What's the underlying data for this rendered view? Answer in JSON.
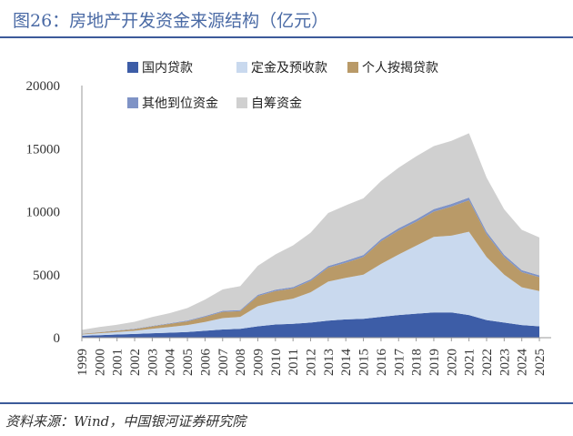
{
  "header": {
    "title": "图26：房地产开发资金来源结构（亿元）"
  },
  "footer": {
    "source": "资料来源：Wind，中国银河证券研究院"
  },
  "colors": {
    "domestic_loans": "#3d5da7",
    "deposits_advances": "#c9d9ee",
    "mortgage": "#b99a68",
    "other_funds": "#7f93c6",
    "self_raised": "#d0d0d0",
    "rule": "#3c5a9a",
    "title": "#4a6aa5"
  },
  "chart_data": {
    "type": "area",
    "title": "",
    "xlabel": "",
    "ylabel": "",
    "ylim": [
      0,
      20000
    ],
    "yticks": [
      0,
      5000,
      10000,
      15000,
      20000
    ],
    "ytick_labels": [
      "0",
      "5000",
      "10000",
      "15000",
      "20000"
    ],
    "xtick_labels": [
      "1999",
      "2000",
      "2001",
      "2002",
      "2003",
      "2004",
      "2005",
      "2006",
      "2007",
      "2008",
      "2009",
      "2010",
      "2011",
      "2012",
      "2013",
      "2014",
      "2015",
      "2016",
      "2017",
      "2018",
      "2019",
      "2020",
      "2021",
      "2022",
      "2023",
      "2024",
      "2025"
    ],
    "frequency": "monthly, Jan 1999 – Aug 2025 (annual points shown as representative year averages)",
    "stacking": "series stacked in listed order",
    "legend": {
      "position": "top",
      "columns": 2
    },
    "x": [
      1999,
      2000,
      2001,
      2002,
      2003,
      2004,
      2005,
      2006,
      2007,
      2008,
      2009,
      2010,
      2011,
      2012,
      2013,
      2014,
      2015,
      2016,
      2017,
      2018,
      2019,
      2020,
      2021,
      2022,
      2023,
      2024,
      2025
    ],
    "series": [
      {
        "name": "国内贷款",
        "key": "domestic_loans",
        "values": [
          150,
          200,
          250,
          300,
          350,
          400,
          450,
          550,
          650,
          700,
          900,
          1050,
          1100,
          1200,
          1350,
          1450,
          1500,
          1650,
          1800,
          1900,
          2000,
          2000,
          1800,
          1400,
          1200,
          1000,
          900
        ]
      },
      {
        "name": "定金及预收款",
        "key": "deposits_advances",
        "values": [
          100,
          150,
          200,
          250,
          350,
          450,
          550,
          700,
          900,
          950,
          1600,
          1800,
          2000,
          2400,
          3100,
          3300,
          3500,
          4200,
          4800,
          5400,
          6000,
          6100,
          6600,
          5000,
          3800,
          3000,
          2800
        ]
      },
      {
        "name": "个人按揭贷款",
        "key": "mortgage",
        "values": [
          50,
          70,
          100,
          130,
          200,
          250,
          300,
          400,
          500,
          450,
          800,
          850,
          800,
          900,
          1100,
          1200,
          1400,
          1800,
          1900,
          1900,
          2000,
          2300,
          2500,
          1800,
          1400,
          1200,
          1100
        ]
      },
      {
        "name": "其他到位资金",
        "key": "other_funds",
        "values": [
          20,
          25,
          30,
          35,
          40,
          50,
          60,
          70,
          80,
          90,
          100,
          110,
          120,
          130,
          140,
          150,
          160,
          170,
          180,
          190,
          200,
          210,
          220,
          200,
          180,
          160,
          150
        ]
      },
      {
        "name": "自筹资金",
        "key": "self_raised",
        "values": [
          300,
          400,
          450,
          550,
          700,
          800,
          1000,
          1300,
          1700,
          1900,
          2300,
          2800,
          3300,
          3700,
          4200,
          4400,
          4500,
          4600,
          4800,
          5000,
          5000,
          5000,
          5100,
          4300,
          3600,
          3200,
          3000
        ]
      }
    ]
  }
}
